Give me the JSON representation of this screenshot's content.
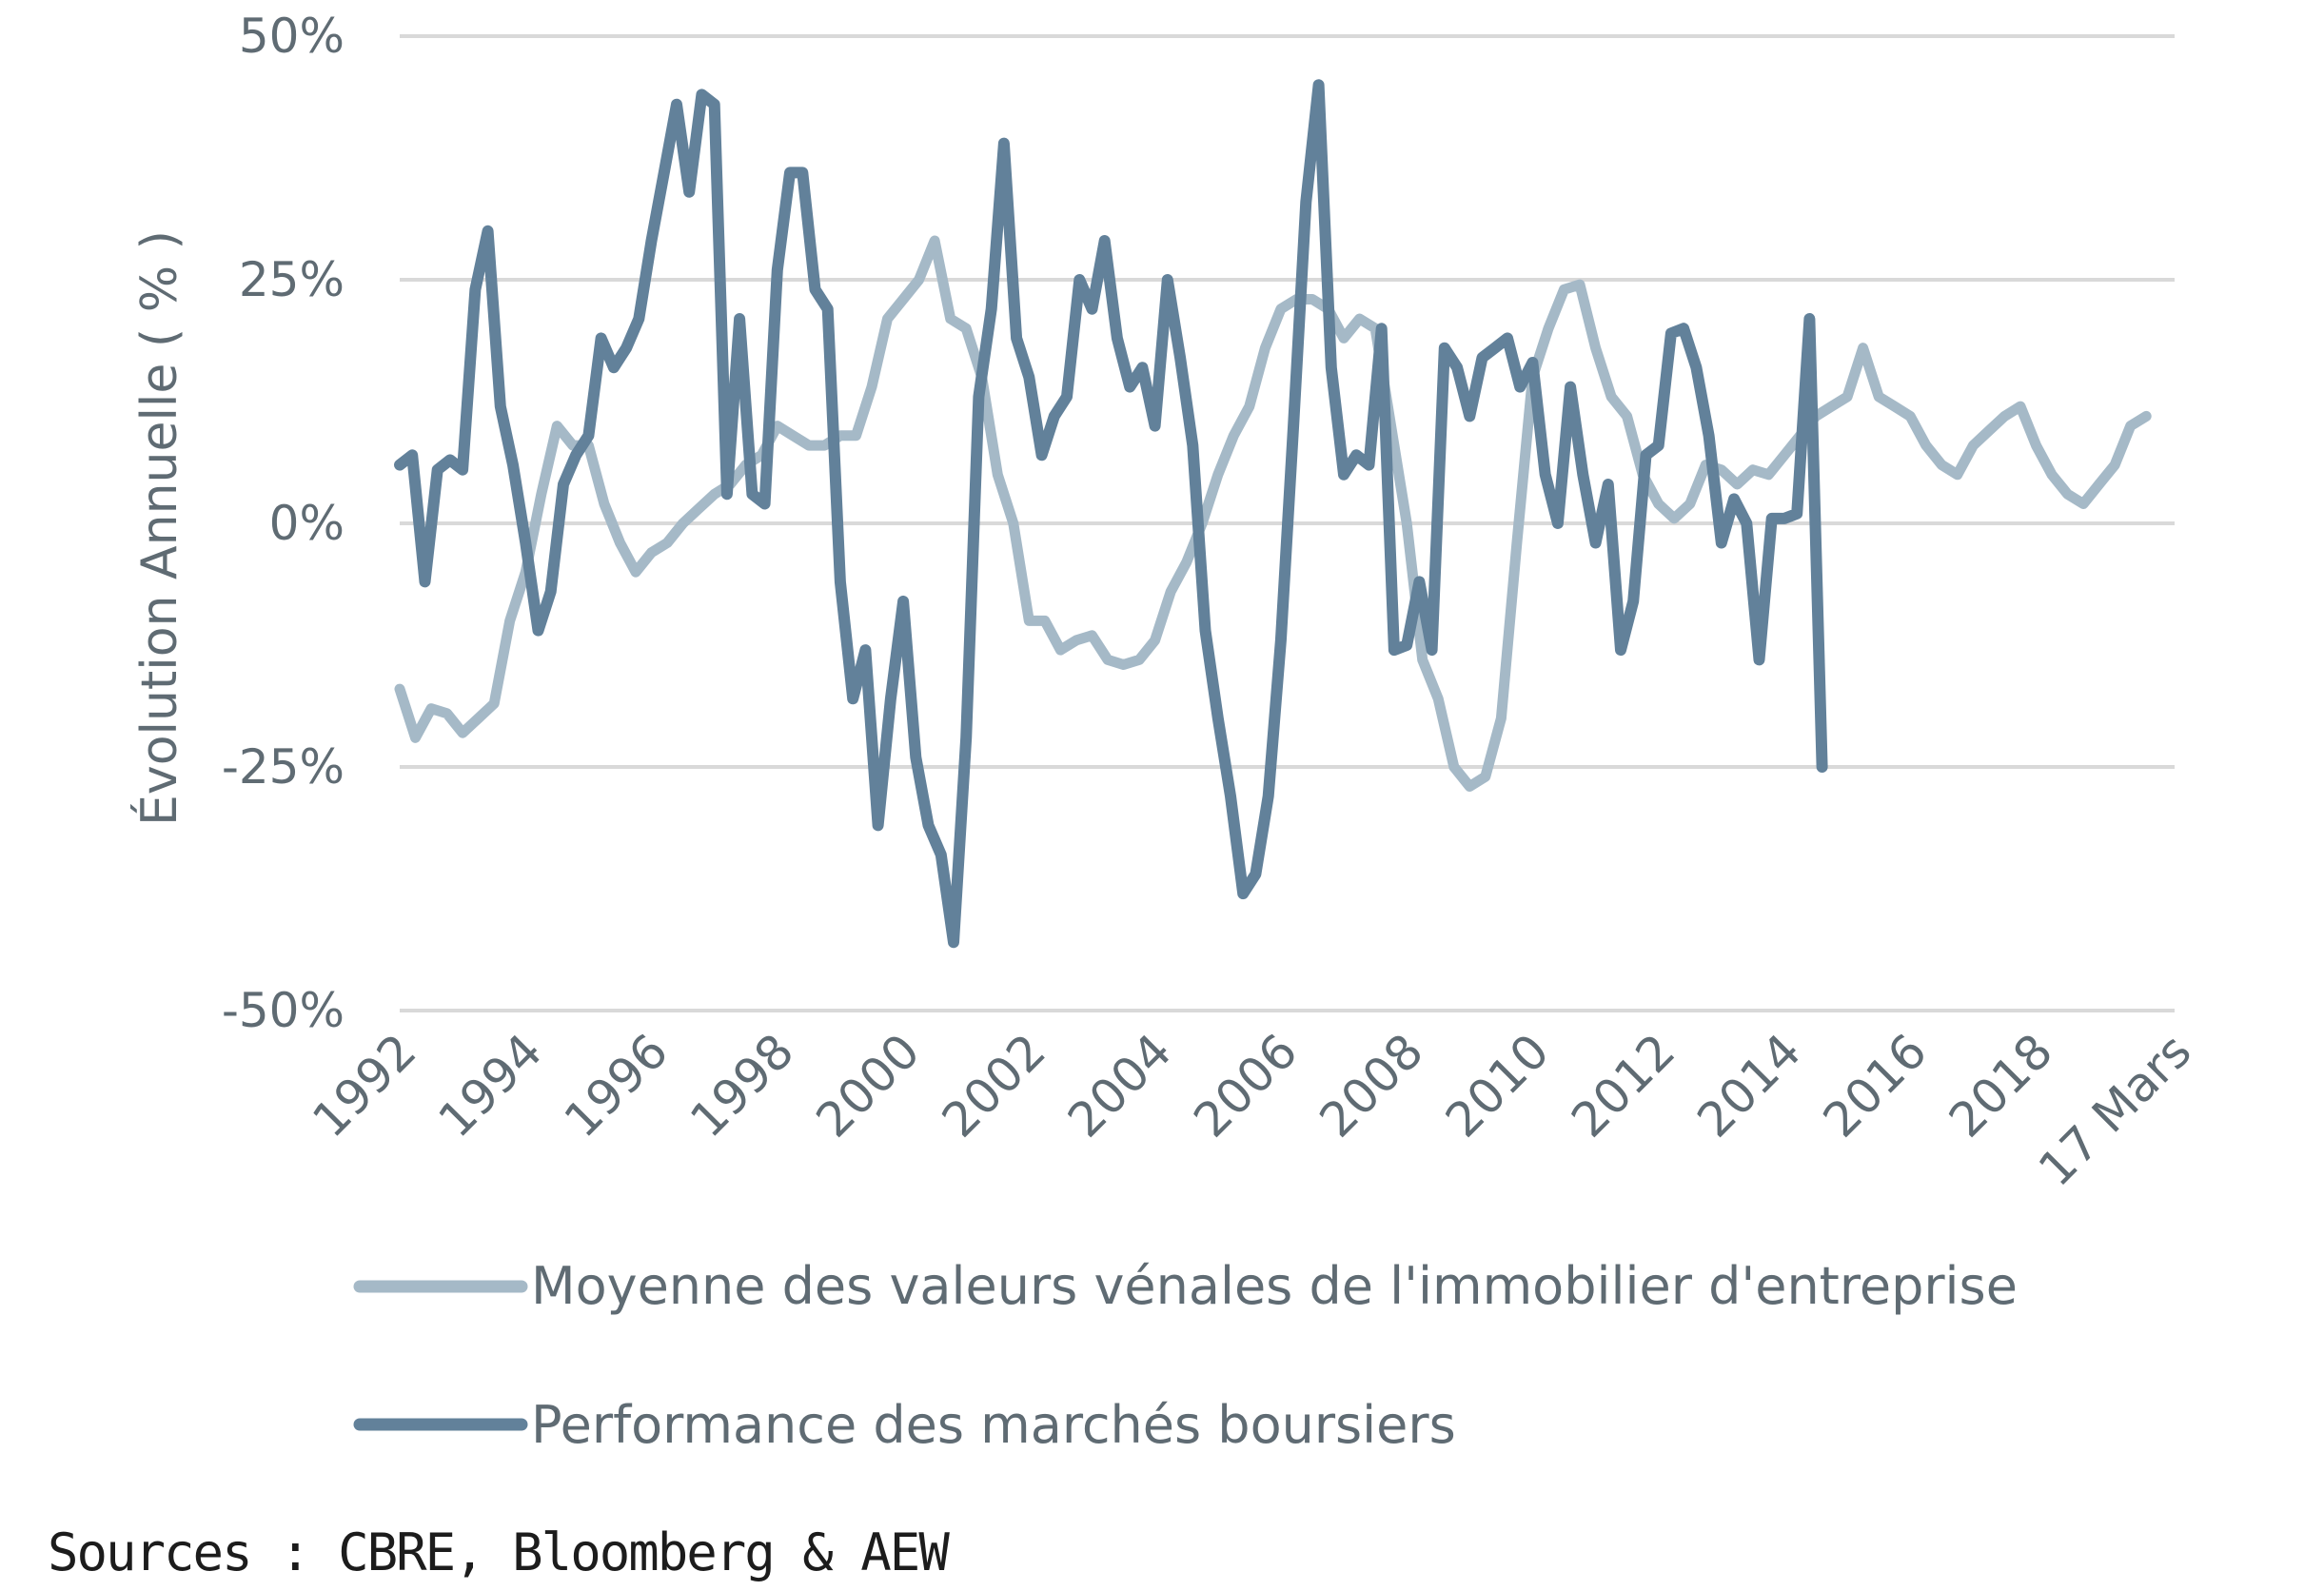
{
  "chart_data": {
    "type": "line",
    "ylabel": "Évolution Annuelle ( % )",
    "ylim": [
      -50,
      50
    ],
    "yticks": [
      50,
      25,
      0,
      -25,
      -50
    ],
    "ytick_labels": [
      "50%",
      "25%",
      "0%",
      "-25%",
      "-50%"
    ],
    "xlim": [
      1992,
      2020.2
    ],
    "xtick_labels": [
      {
        "x": 1992,
        "label": "1992"
      },
      {
        "x": 1994,
        "label": "1994"
      },
      {
        "x": 1996,
        "label": "1996"
      },
      {
        "x": 1998,
        "label": "1998"
      },
      {
        "x": 2000,
        "label": "2000"
      },
      {
        "x": 2002,
        "label": "2002"
      },
      {
        "x": 2004,
        "label": "2004"
      },
      {
        "x": 2006,
        "label": "2006"
      },
      {
        "x": 2008,
        "label": "2008"
      },
      {
        "x": 2010,
        "label": "2010"
      },
      {
        "x": 2012,
        "label": "2012"
      },
      {
        "x": 2014,
        "label": "2014"
      },
      {
        "x": 2016,
        "label": "2016"
      },
      {
        "x": 2018,
        "label": "2018"
      },
      {
        "x": 2020.2,
        "label": "17 Mars"
      }
    ],
    "grid": true,
    "legend_position": "bottom",
    "series": [
      {
        "name": "Moyenne des valeurs vénales de l'immobilier d'entreprise",
        "color": "#a5b9c7",
        "points": [
          [
            1992.0,
            -17
          ],
          [
            1992.25,
            -22
          ],
          [
            1992.5,
            -19
          ],
          [
            1992.75,
            -19.5
          ],
          [
            1993.0,
            -21.5
          ],
          [
            1993.25,
            -20
          ],
          [
            1993.5,
            -18.5
          ],
          [
            1993.75,
            -10
          ],
          [
            1994.0,
            -5
          ],
          [
            1994.25,
            3
          ],
          [
            1994.5,
            10
          ],
          [
            1994.75,
            8
          ],
          [
            1995.0,
            8
          ],
          [
            1995.25,
            2
          ],
          [
            1995.5,
            -2
          ],
          [
            1995.75,
            -5
          ],
          [
            1996.0,
            -3
          ],
          [
            1996.25,
            -2
          ],
          [
            1996.5,
            0
          ],
          [
            1996.75,
            1.5
          ],
          [
            1997.0,
            3
          ],
          [
            1997.25,
            4
          ],
          [
            1997.5,
            6
          ],
          [
            1997.75,
            7
          ],
          [
            1998.0,
            10
          ],
          [
            1998.25,
            9
          ],
          [
            1998.5,
            8
          ],
          [
            1998.75,
            8
          ],
          [
            1999.0,
            9
          ],
          [
            1999.25,
            9
          ],
          [
            1999.5,
            14
          ],
          [
            1999.75,
            21
          ],
          [
            2000.0,
            23
          ],
          [
            2000.25,
            25
          ],
          [
            2000.5,
            29
          ],
          [
            2000.75,
            21
          ],
          [
            2001.0,
            20
          ],
          [
            2001.25,
            15
          ],
          [
            2001.5,
            5
          ],
          [
            2001.75,
            0
          ],
          [
            2002.0,
            -10
          ],
          [
            2002.25,
            -10
          ],
          [
            2002.5,
            -13
          ],
          [
            2002.75,
            -12
          ],
          [
            2003.0,
            -11.5
          ],
          [
            2003.25,
            -14
          ],
          [
            2003.5,
            -14.5
          ],
          [
            2003.75,
            -14
          ],
          [
            2004.0,
            -12
          ],
          [
            2004.25,
            -7
          ],
          [
            2004.5,
            -4
          ],
          [
            2004.75,
            0
          ],
          [
            2005.0,
            5
          ],
          [
            2005.25,
            9
          ],
          [
            2005.5,
            12
          ],
          [
            2005.75,
            18
          ],
          [
            2006.0,
            22
          ],
          [
            2006.25,
            23
          ],
          [
            2006.5,
            23
          ],
          [
            2006.75,
            22
          ],
          [
            2007.0,
            19
          ],
          [
            2007.25,
            21
          ],
          [
            2007.5,
            20
          ],
          [
            2007.75,
            10
          ],
          [
            2008.0,
            0
          ],
          [
            2008.25,
            -14
          ],
          [
            2008.5,
            -18
          ],
          [
            2008.75,
            -25
          ],
          [
            2009.0,
            -27
          ],
          [
            2009.25,
            -26
          ],
          [
            2009.5,
            -20
          ],
          [
            2009.75,
            -2
          ],
          [
            2010.0,
            15
          ],
          [
            2010.25,
            20
          ],
          [
            2010.5,
            24
          ],
          [
            2010.75,
            24.5
          ],
          [
            2011.0,
            18
          ],
          [
            2011.25,
            13
          ],
          [
            2011.5,
            11
          ],
          [
            2011.75,
            5
          ],
          [
            2012.0,
            2
          ],
          [
            2012.25,
            0.5
          ],
          [
            2012.5,
            2
          ],
          [
            2012.75,
            6
          ],
          [
            2013.0,
            5.5
          ],
          [
            2013.25,
            4
          ],
          [
            2013.5,
            5.5
          ],
          [
            2013.75,
            5
          ],
          [
            2014.0,
            7
          ],
          [
            2014.25,
            9
          ],
          [
            2014.5,
            11
          ],
          [
            2014.75,
            12
          ],
          [
            2015.0,
            13
          ],
          [
            2015.25,
            18
          ],
          [
            2015.5,
            13
          ],
          [
            2015.75,
            12
          ],
          [
            2016.0,
            11
          ],
          [
            2016.25,
            8
          ],
          [
            2016.5,
            6
          ],
          [
            2016.75,
            5
          ],
          [
            2017.0,
            8
          ],
          [
            2017.25,
            9.5
          ],
          [
            2017.5,
            11
          ],
          [
            2017.75,
            12
          ],
          [
            2018.0,
            8
          ],
          [
            2018.25,
            5
          ],
          [
            2018.5,
            3
          ],
          [
            2018.75,
            2
          ],
          [
            2019.0,
            4
          ],
          [
            2019.25,
            6
          ],
          [
            2019.5,
            10
          ],
          [
            2019.75,
            11
          ]
        ]
      },
      {
        "name": "Performance des marchés boursiers",
        "color": "#62819a",
        "points": [
          [
            1992.0,
            6
          ],
          [
            1992.2,
            7
          ],
          [
            1992.4,
            -6
          ],
          [
            1992.6,
            5.5
          ],
          [
            1992.8,
            6.5
          ],
          [
            1993.0,
            5.5
          ],
          [
            1993.2,
            24
          ],
          [
            1993.4,
            30
          ],
          [
            1993.6,
            12
          ],
          [
            1993.8,
            6
          ],
          [
            1994.0,
            -2
          ],
          [
            1994.2,
            -11
          ],
          [
            1994.4,
            -7
          ],
          [
            1994.6,
            4
          ],
          [
            1994.8,
            7
          ],
          [
            1995.0,
            9
          ],
          [
            1995.2,
            19
          ],
          [
            1995.4,
            16
          ],
          [
            1995.6,
            18
          ],
          [
            1995.8,
            21
          ],
          [
            1996.0,
            29
          ],
          [
            1996.2,
            36
          ],
          [
            1996.4,
            43
          ],
          [
            1996.6,
            34
          ],
          [
            1996.8,
            44
          ],
          [
            1997.0,
            43
          ],
          [
            1997.2,
            3
          ],
          [
            1997.4,
            21
          ],
          [
            1997.6,
            3
          ],
          [
            1997.8,
            2
          ],
          [
            1998.0,
            26
          ],
          [
            1998.2,
            36
          ],
          [
            1998.4,
            36
          ],
          [
            1998.6,
            24
          ],
          [
            1998.8,
            22
          ],
          [
            1999.0,
            -6
          ],
          [
            1999.2,
            -18
          ],
          [
            1999.4,
            -13
          ],
          [
            1999.6,
            -31
          ],
          [
            1999.8,
            -18
          ],
          [
            2000.0,
            -8
          ],
          [
            2000.2,
            -24
          ],
          [
            2000.4,
            -31
          ],
          [
            2000.6,
            -34
          ],
          [
            2000.8,
            -43
          ],
          [
            2001.0,
            -22
          ],
          [
            2001.2,
            13
          ],
          [
            2001.4,
            22
          ],
          [
            2001.6,
            39
          ],
          [
            2001.8,
            19
          ],
          [
            2002.0,
            15
          ],
          [
            2002.2,
            7
          ],
          [
            2002.4,
            11
          ],
          [
            2002.6,
            13
          ],
          [
            2002.8,
            25
          ],
          [
            2003.0,
            22
          ],
          [
            2003.2,
            29
          ],
          [
            2003.4,
            19
          ],
          [
            2003.6,
            14
          ],
          [
            2003.8,
            16
          ],
          [
            2004.0,
            10
          ],
          [
            2004.2,
            25
          ],
          [
            2004.4,
            17
          ],
          [
            2004.6,
            8
          ],
          [
            2004.8,
            -11
          ],
          [
            2005.0,
            -20
          ],
          [
            2005.2,
            -28
          ],
          [
            2005.4,
            -38
          ],
          [
            2005.6,
            -36
          ],
          [
            2005.8,
            -28
          ],
          [
            2006.0,
            -12
          ],
          [
            2006.2,
            10
          ],
          [
            2006.4,
            33
          ],
          [
            2006.6,
            45
          ],
          [
            2006.8,
            16
          ],
          [
            2007.0,
            5
          ],
          [
            2007.2,
            7
          ],
          [
            2007.4,
            6
          ],
          [
            2007.6,
            20
          ],
          [
            2007.8,
            -13
          ],
          [
            2008.0,
            -12.5
          ],
          [
            2008.2,
            -6
          ],
          [
            2008.4,
            -13
          ],
          [
            2008.6,
            18
          ],
          [
            2008.8,
            16
          ],
          [
            2009.0,
            11
          ],
          [
            2009.2,
            17
          ],
          [
            2009.4,
            18
          ],
          [
            2009.6,
            19
          ],
          [
            2009.8,
            14
          ],
          [
            2010.0,
            16.5
          ],
          [
            2010.2,
            5
          ],
          [
            2010.4,
            0
          ],
          [
            2010.6,
            14
          ],
          [
            2010.8,
            5
          ],
          [
            2011.0,
            -2
          ],
          [
            2011.2,
            4
          ],
          [
            2011.4,
            -13
          ],
          [
            2011.6,
            -8
          ],
          [
            2011.8,
            7
          ],
          [
            2012.0,
            8
          ],
          [
            2012.2,
            19.5
          ],
          [
            2012.4,
            20
          ],
          [
            2012.6,
            16
          ],
          [
            2012.8,
            9
          ],
          [
            2013.0,
            -2
          ],
          [
            2013.2,
            2.5
          ],
          [
            2013.4,
            0
          ],
          [
            2013.6,
            -14
          ],
          [
            2013.8,
            0.5
          ],
          [
            2014.0,
            0.5
          ],
          [
            2014.2,
            1
          ],
          [
            2014.4,
            21
          ],
          [
            2014.6,
            -25
          ]
        ]
      }
    ]
  },
  "source": "Sources : CBRE, Bloomberg & AEW"
}
